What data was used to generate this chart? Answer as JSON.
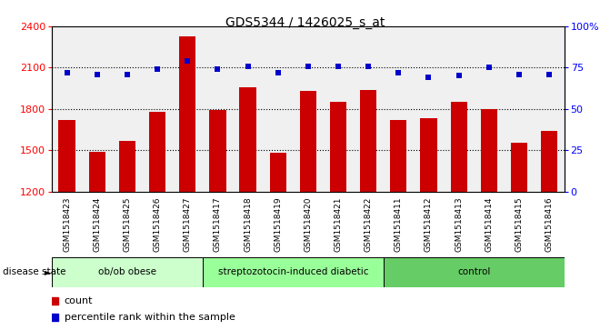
{
  "title": "GDS5344 / 1426025_s_at",
  "samples": [
    "GSM1518423",
    "GSM1518424",
    "GSM1518425",
    "GSM1518426",
    "GSM1518427",
    "GSM1518417",
    "GSM1518418",
    "GSM1518419",
    "GSM1518420",
    "GSM1518421",
    "GSM1518422",
    "GSM1518411",
    "GSM1518412",
    "GSM1518413",
    "GSM1518414",
    "GSM1518415",
    "GSM1518416"
  ],
  "counts": [
    1720,
    1490,
    1565,
    1780,
    2330,
    1790,
    1960,
    1480,
    1930,
    1850,
    1940,
    1720,
    1730,
    1850,
    1800,
    1555,
    1640
  ],
  "percentile_ranks": [
    72,
    71,
    71,
    74,
    79,
    74,
    76,
    72,
    76,
    76,
    76,
    72,
    69,
    70,
    75,
    71,
    71
  ],
  "groups": [
    {
      "label": "ob/ob obese",
      "start": 0,
      "end": 5,
      "color": "#ccffcc"
    },
    {
      "label": "streptozotocin-induced diabetic",
      "start": 5,
      "end": 11,
      "color": "#99ff99"
    },
    {
      "label": "control",
      "start": 11,
      "end": 17,
      "color": "#66cc66"
    }
  ],
  "bar_color": "#cc0000",
  "dot_color": "#0000cc",
  "ylim_left": [
    1200,
    2400
  ],
  "ylim_right": [
    0,
    100
  ],
  "yticks_left": [
    1200,
    1500,
    1800,
    2100,
    2400
  ],
  "yticks_right": [
    0,
    25,
    50,
    75,
    100
  ],
  "grid_values": [
    1500,
    1800,
    2100
  ],
  "bar_width": 0.55,
  "plot_bg_color": "#f0f0f0",
  "tick_area_bg": "#d8d8d8",
  "legend_items": [
    {
      "label": "count",
      "color": "#cc0000"
    },
    {
      "label": "percentile rank within the sample",
      "color": "#0000cc"
    }
  ]
}
